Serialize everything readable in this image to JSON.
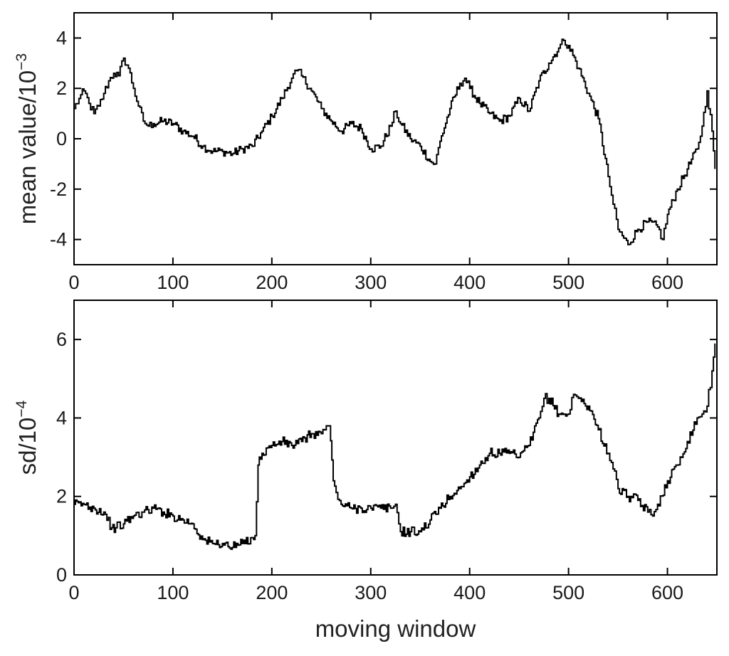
{
  "chart_data": [
    {
      "type": "line",
      "ylabel": "mean value/10",
      "ylabel_exponent": "−3",
      "xlim": [
        0,
        650
      ],
      "ylim": [
        -5,
        5
      ],
      "xticks": [
        "0",
        "100",
        "200",
        "300",
        "400",
        "500",
        "600"
      ],
      "xtick_values": [
        0,
        100,
        200,
        300,
        400,
        500,
        600
      ],
      "yticks": [
        "4",
        "2",
        "0",
        "-2",
        "-4"
      ],
      "ytick_values": [
        4,
        2,
        0,
        -2,
        -4
      ],
      "series": [
        {
          "x": [
            0,
            5,
            10,
            15,
            20,
            25,
            30,
            35,
            40,
            45,
            50,
            55,
            60,
            65,
            70,
            75,
            80,
            90,
            100,
            110,
            120,
            130,
            140,
            150,
            160,
            170,
            180,
            190,
            200,
            210,
            220,
            225,
            230,
            240,
            250,
            260,
            270,
            280,
            290,
            300,
            310,
            320,
            325,
            330,
            340,
            350,
            360,
            365,
            370,
            380,
            390,
            395,
            400,
            410,
            420,
            430,
            440,
            450,
            460,
            470,
            480,
            490,
            495,
            500,
            510,
            520,
            530,
            540,
            545,
            550,
            560,
            570,
            580,
            590,
            595,
            600,
            610,
            620,
            630,
            635,
            640,
            645,
            648
          ],
          "y": [
            1.2,
            1.6,
            1.9,
            1.4,
            1.0,
            1.3,
            1.8,
            2.3,
            2.6,
            2.5,
            3.2,
            2.8,
            2.0,
            1.3,
            0.7,
            0.5,
            0.6,
            0.7,
            0.6,
            0.3,
            0.1,
            -0.3,
            -0.5,
            -0.5,
            -0.6,
            -0.4,
            -0.3,
            0.3,
            0.9,
            1.6,
            2.4,
            2.7,
            2.5,
            1.9,
            1.2,
            0.7,
            0.3,
            0.6,
            0.4,
            -0.4,
            -0.3,
            0.5,
            1.1,
            0.6,
            0.0,
            -0.3,
            -0.9,
            -1.0,
            -0.1,
            1.2,
            2.2,
            2.4,
            2.0,
            1.4,
            1.0,
            0.7,
            0.9,
            1.6,
            1.1,
            2.3,
            3.0,
            3.6,
            3.9,
            3.7,
            2.8,
            1.8,
            0.8,
            -1.5,
            -2.6,
            -3.6,
            -4.2,
            -3.6,
            -3.3,
            -3.5,
            -4.0,
            -3.0,
            -2.0,
            -1.2,
            -0.4,
            0.5,
            1.9,
            0.3,
            -1.2
          ]
        }
      ]
    },
    {
      "type": "line",
      "ylabel": "sd/10",
      "ylabel_exponent": "−4",
      "xlabel": "moving window",
      "xlim": [
        0,
        650
      ],
      "ylim": [
        0,
        7
      ],
      "xticks": [
        "0",
        "100",
        "200",
        "300",
        "400",
        "500",
        "600"
      ],
      "xtick_values": [
        0,
        100,
        200,
        300,
        400,
        500,
        600
      ],
      "yticks": [
        "6",
        "4",
        "2",
        "0"
      ],
      "ytick_values": [
        6,
        4,
        2,
        0
      ],
      "series": [
        {
          "x": [
            0,
            10,
            20,
            30,
            38,
            42,
            50,
            60,
            70,
            80,
            90,
            100,
            110,
            120,
            130,
            140,
            150,
            160,
            170,
            183,
            186,
            190,
            200,
            210,
            220,
            230,
            240,
            250,
            255,
            258,
            262,
            265,
            270,
            280,
            290,
            300,
            310,
            320,
            325,
            330,
            340,
            350,
            360,
            370,
            380,
            390,
            400,
            410,
            420,
            430,
            440,
            450,
            460,
            470,
            475,
            480,
            490,
            500,
            505,
            510,
            520,
            530,
            540,
            545,
            550,
            560,
            570,
            580,
            585,
            590,
            600,
            610,
            620,
            630,
            635,
            640,
            645,
            648
          ],
          "y": [
            1.8,
            1.8,
            1.7,
            1.6,
            1.2,
            1.2,
            1.3,
            1.5,
            1.6,
            1.7,
            1.6,
            1.5,
            1.4,
            1.3,
            0.9,
            0.8,
            0.8,
            0.7,
            0.8,
            1.0,
            2.8,
            3.1,
            3.3,
            3.4,
            3.3,
            3.4,
            3.6,
            3.6,
            3.8,
            3.8,
            2.4,
            2.1,
            1.8,
            1.7,
            1.7,
            1.7,
            1.7,
            1.7,
            1.8,
            1.1,
            1.1,
            1.1,
            1.4,
            1.7,
            2.0,
            2.2,
            2.5,
            2.8,
            3.1,
            3.1,
            3.1,
            3.0,
            3.3,
            4.0,
            4.5,
            4.5,
            4.1,
            4.1,
            4.6,
            4.5,
            4.3,
            3.7,
            3.1,
            2.7,
            2.2,
            2.0,
            1.9,
            1.6,
            1.5,
            1.8,
            2.4,
            2.8,
            3.4,
            4.0,
            4.1,
            4.3,
            5.2,
            5.9
          ]
        }
      ]
    }
  ]
}
